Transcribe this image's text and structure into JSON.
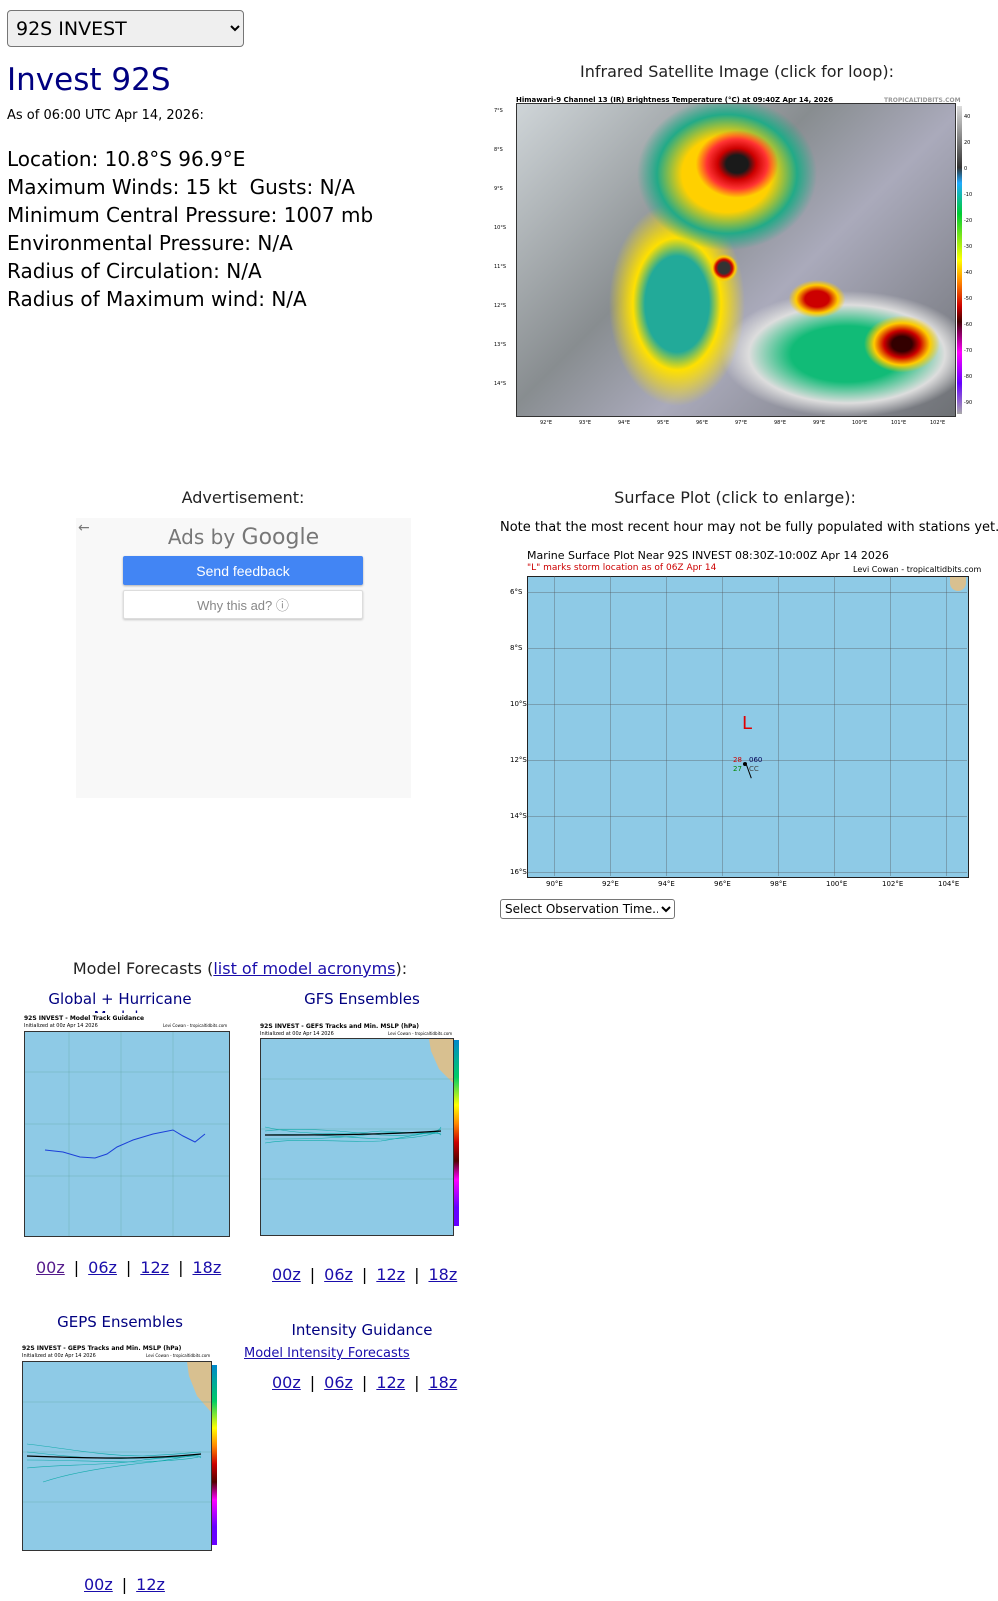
{
  "storm_select": {
    "value": "92S INVEST"
  },
  "storm": {
    "title": "Invest 92S",
    "as_of": "As of 06:00 UTC Apr 14, 2026:",
    "location": "Location: 10.8°S 96.9°E",
    "winds": "Maximum Winds: 15 kt  Gusts: N/A",
    "pressure": "Minimum Central Pressure: 1007 mb",
    "env_pressure": "Environmental Pressure: N/A",
    "radius_circ": "Radius of Circulation: N/A",
    "radius_max": "Radius of Maximum wind: N/A"
  },
  "satellite": {
    "caption": "Infrared Satellite Image (click for loop):",
    "header": "Himawari-9 Channel 13 (IR) Brightness Temperature (°C) at 09:40Z Apr 14, 2026",
    "brand": "TROPICALTIDBITS.COM",
    "lat_labels": [
      "7°S",
      "8°S",
      "9°S",
      "10°S",
      "11°S",
      "12°S",
      "13°S",
      "14°S"
    ],
    "lon_labels": [
      "92°E",
      "93°E",
      "94°E",
      "95°E",
      "96°E",
      "97°E",
      "98°E",
      "99°E",
      "100°E",
      "101°E",
      "102°E"
    ],
    "colorbar_labels": [
      "40",
      "20",
      "0",
      "-10",
      "-20",
      "-30",
      "-40",
      "-50",
      "-60",
      "-70",
      "-80",
      "-90"
    ]
  },
  "ad": {
    "caption": "Advertisement:",
    "back": "←",
    "ads_by_prefix": "Ads by ",
    "ads_by_brand": "Google",
    "feedback": "Send feedback",
    "why": "Why this ad? ⓘ"
  },
  "surface": {
    "caption": "Surface Plot (click to enlarge):",
    "note": "Note that the most recent hour may not be fully populated with stations yet.",
    "title": "Marine Surface Plot Near 92S INVEST 08:30Z-10:00Z Apr 14 2026",
    "subtitle": "\"L\" marks storm location as of 06Z Apr 14",
    "credit": "Levi Cowan - tropicaltidbits.com",
    "storm_marker": "L",
    "lat_labels": [
      "6°S",
      "8°S",
      "10°S",
      "12°S",
      "14°S",
      "16°S"
    ],
    "lon_labels": [
      "90°E",
      "92°E",
      "94°E",
      "96°E",
      "98°E",
      "100°E",
      "102°E",
      "104°E"
    ],
    "station": {
      "temp": "28",
      "dew": "27",
      "pressure": "060",
      "cover": "CC"
    },
    "obs_select": "Select Observation Time..."
  },
  "models": {
    "caption_prefix": "Model Forecasts (",
    "caption_link": "list of model acronyms",
    "caption_suffix": "):",
    "global": {
      "label": "Global + Hurricane Models",
      "title": "92S INVEST - Model Track Guidance",
      "subtitle": "Initialized at 00z Apr 14 2026",
      "credit": "Levi Cowan - tropicaltidbits.com",
      "runs": [
        "00z",
        "06z",
        "12z",
        "18z"
      ]
    },
    "gfs": {
      "label": "GFS Ensembles",
      "title": "92S INVEST - GEFS Tracks and Min. MSLP (hPa)",
      "subtitle": "Initialized at 00z Apr 14 2026",
      "credit": "Levi Cowan - tropicaltidbits.com",
      "runs": [
        "00z",
        "06z",
        "12z",
        "18z"
      ]
    },
    "geps": {
      "label": "GEPS Ensembles",
      "title": "92S INVEST - GEPS Tracks and Min. MSLP (hPa)",
      "subtitle": "Initialized at 00z Apr 14 2026",
      "credit": "Levi Cowan - tropicaltidbits.com",
      "runs": [
        "00z",
        "12z"
      ]
    },
    "intensity": {
      "label": "Intensity Guidance",
      "link": "Model Intensity Forecasts",
      "runs": [
        "00z",
        "06z",
        "12z",
        "18z"
      ]
    }
  },
  "colors": {
    "title": "#000080",
    "link": "#1a0dab",
    "ocean": "#8ecae6",
    "ad_button": "#4285f4"
  }
}
